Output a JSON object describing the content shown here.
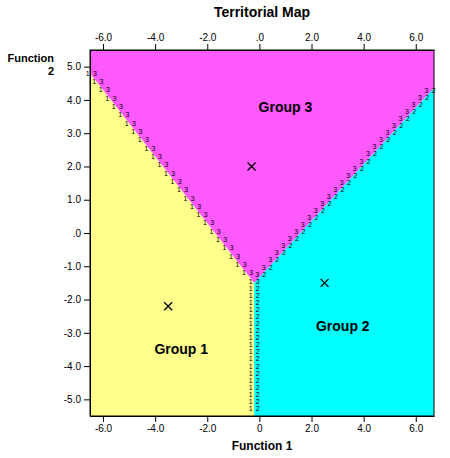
{
  "chart_data": {
    "type": "territorial_map",
    "title": "Territorial Map",
    "x_label": "Function 1",
    "y_label": "Function\n2",
    "xlim": [
      -6.5,
      6.7
    ],
    "ylim": [
      -5.5,
      5.5
    ],
    "xticks": [
      {
        "value": -6.0,
        "label": "-6.0"
      },
      {
        "value": -4.0,
        "label": "-4.0"
      },
      {
        "value": -2.0,
        "label": "-2.0"
      },
      0,
      {
        "value": 2.0,
        "label": "2.0"
      },
      {
        "value": 4.0,
        "label": "4.0"
      },
      {
        "value": 6.0,
        "label": "6.0"
      }
    ],
    "x2ticks": [
      {
        "value": -6.0,
        "label": "-6.0"
      },
      {
        "value": -4.0,
        "label": "-4.0"
      },
      {
        "value": -2.0,
        "label": "-2.0"
      },
      {
        "value": 0.0,
        "label": ".0"
      },
      {
        "value": 2.0,
        "label": "2.0"
      },
      {
        "value": 4.0,
        "label": "4.0"
      },
      {
        "value": 6.0,
        "label": "6.0"
      }
    ],
    "yticks": [
      {
        "value": -5.0,
        "label": "-5.0"
      },
      {
        "value": -4.0,
        "label": "-4.0"
      },
      {
        "value": -3.0,
        "label": "-3.0"
      },
      {
        "value": -2.0,
        "label": "-2.0"
      },
      {
        "value": -1.0,
        "label": "-1.0"
      },
      {
        "value": 0.0,
        "label": ".0"
      },
      {
        "value": 1.0,
        "label": "1.0"
      },
      {
        "value": 2.0,
        "label": "2.0"
      },
      {
        "value": 3.0,
        "label": "3.0"
      },
      {
        "value": 4.0,
        "label": "4.0"
      },
      {
        "value": 5.0,
        "label": "5.0"
      }
    ],
    "grid": false,
    "regions": [
      {
        "name": "Group 1",
        "color": "#ffff8c",
        "x": [
          -6.5,
          -0.2,
          -0.2,
          -6.5
        ],
        "y": [
          -5.5,
          -5.5,
          -1.5,
          4.8
        ],
        "centroid": [
          -3.5,
          -2.2
        ],
        "label_position": [
          -3.0,
          -3.5
        ]
      },
      {
        "name": "Group 2",
        "color": "#00ffff",
        "x": [
          -0.2,
          6.7,
          6.7,
          -0.2
        ],
        "y": [
          -5.5,
          -5.5,
          4.365,
          -1.5
        ],
        "centroid": [
          2.5,
          -1.5
        ],
        "label_position": [
          3.2,
          -2.8
        ]
      },
      {
        "name": "Group 3",
        "color": "#ff59ff",
        "x": [
          -6.5,
          -0.2,
          6.7,
          6.7,
          -6.5
        ],
        "y": [
          4.8,
          -1.5,
          4.365,
          5.5,
          5.5
        ],
        "centroid": [
          -0.3,
          2.0
        ],
        "label_position": [
          1.0,
          3.8
        ]
      }
    ],
    "boundary_labels": [
      {
        "labels": [
          "1",
          "3"
        ],
        "x": [
          -0.2,
          -0.45,
          -0.7,
          -0.95,
          -1.2,
          -1.45,
          -1.7,
          -1.95,
          -2.2,
          -2.45,
          -2.7,
          -2.95,
          -3.2,
          -3.45,
          -3.7,
          -3.95,
          -4.2,
          -4.45,
          -4.7,
          -4.95,
          -5.2,
          -5.45,
          -5.7,
          -5.95,
          -6.2,
          -6.45
        ],
        "y": [
          -1.5,
          -1.25,
          -1.0,
          -0.75,
          -0.5,
          -0.25,
          0.0,
          0.25,
          0.5,
          0.75,
          1.0,
          1.25,
          1.5,
          1.75,
          2.0,
          2.25,
          2.5,
          2.75,
          3.0,
          3.25,
          3.5,
          3.75,
          4.0,
          4.25,
          4.5,
          4.75
        ]
      },
      {
        "labels": [
          "3",
          "2"
        ],
        "x": [
          0.05,
          0.3,
          0.55,
          0.8,
          1.05,
          1.3,
          1.55,
          1.8,
          2.05,
          2.3,
          2.55,
          2.8,
          3.05,
          3.3,
          3.55,
          3.8,
          4.05,
          4.3,
          4.55,
          4.8,
          5.05,
          5.3,
          5.55,
          5.8,
          6.05,
          6.3,
          6.55
        ],
        "y": [
          -1.2875,
          -1.075,
          -0.8625,
          -0.65,
          -0.4375,
          -0.225,
          -0.0125,
          0.2,
          0.4125,
          0.625,
          0.8375,
          1.05,
          1.2625,
          1.475,
          1.6875,
          1.9,
          2.1125,
          2.325,
          2.5375,
          2.75,
          2.9625,
          3.175,
          3.3875,
          3.6,
          3.8125,
          4.025,
          4.2375
        ]
      },
      {
        "labels": [
          "1",
          "2"
        ],
        "x": [
          -0.2,
          -0.2,
          -0.2,
          -0.2,
          -0.2,
          -0.2,
          -0.2,
          -0.2,
          -0.2,
          -0.2,
          -0.2,
          -0.2,
          -0.2,
          -0.2,
          -0.2,
          -0.2,
          -0.2,
          -0.2
        ],
        "y": [
          -1.7125,
          -1.925,
          -2.1375,
          -2.35,
          -2.5625,
          -2.775,
          -2.9875,
          -3.2,
          -3.4125,
          -3.625,
          -3.8375,
          -4.05,
          -4.2625,
          -4.475,
          -4.6875,
          -4.9,
          -5.1125,
          -5.325
        ]
      }
    ]
  }
}
